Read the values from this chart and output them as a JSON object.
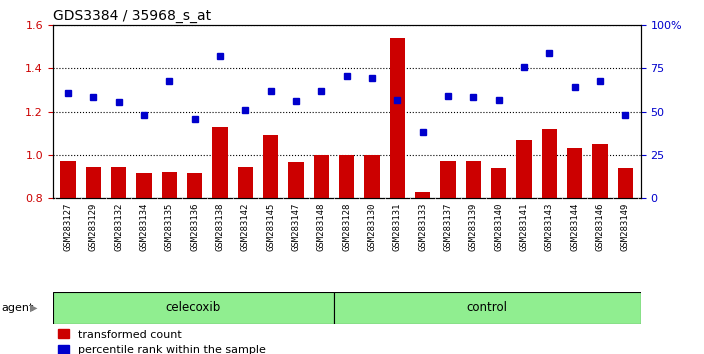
{
  "title": "GDS3384 / 35968_s_at",
  "samples": [
    "GSM283127",
    "GSM283129",
    "GSM283132",
    "GSM283134",
    "GSM283135",
    "GSM283136",
    "GSM283138",
    "GSM283142",
    "GSM283145",
    "GSM283147",
    "GSM283148",
    "GSM283128",
    "GSM283130",
    "GSM283131",
    "GSM283133",
    "GSM283137",
    "GSM283139",
    "GSM283140",
    "GSM283141",
    "GSM283143",
    "GSM283144",
    "GSM283146",
    "GSM283149"
  ],
  "transformed_count": [
    0.97,
    0.945,
    0.945,
    0.915,
    0.92,
    0.915,
    1.13,
    0.945,
    1.09,
    0.965,
    1.0,
    1.0,
    1.0,
    1.54,
    0.83,
    0.97,
    0.97,
    0.94,
    1.07,
    1.12,
    1.03,
    1.05,
    0.94
  ],
  "percentile_rank": [
    1.285,
    1.265,
    1.245,
    1.185,
    1.34,
    1.165,
    1.455,
    1.205,
    1.295,
    1.25,
    1.295,
    1.365,
    1.355,
    1.255,
    1.105,
    1.27,
    1.265,
    1.255,
    1.405,
    1.47,
    1.315,
    1.34,
    1.185
  ],
  "celecoxib_count": 11,
  "control_count": 12,
  "bar_color": "#cc0000",
  "dot_color": "#0000cc",
  "ylim_left": [
    0.8,
    1.6
  ],
  "yticks_left": [
    0.8,
    1.0,
    1.2,
    1.4,
    1.6
  ],
  "yticks_right": [
    0,
    25,
    50,
    75,
    100
  ],
  "celecoxib_color": "#90ee90",
  "legend_items": [
    "transformed count",
    "percentile rank within the sample"
  ],
  "xtick_bg_color": "#c8c8c8",
  "agent_arrow": "agent ▶"
}
